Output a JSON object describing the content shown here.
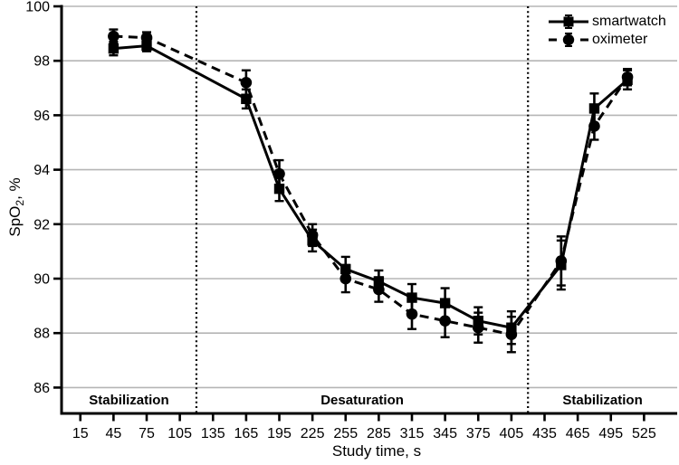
{
  "figure": {
    "background": "#ffffff",
    "series_color": "#000000",
    "gridline_color": "#b5b5b5"
  },
  "chart_data": {
    "type": "line",
    "title": "",
    "xlabel": "Study time, s",
    "ylabel_prefix": "SpO",
    "ylabel_sub": "2",
    "ylabel_suffix": ", %",
    "grid": "horizontal",
    "legend_position": "top-right",
    "xlim": [
      -2,
      555
    ],
    "ylim": [
      85.05,
      100
    ],
    "x_ticks": [
      15,
      45,
      75,
      105,
      135,
      165,
      195,
      225,
      255,
      285,
      315,
      345,
      375,
      405,
      435,
      465,
      495,
      525
    ],
    "y_ticks": [
      86,
      88,
      90,
      92,
      94,
      96,
      98,
      100
    ],
    "x": [
      45,
      75,
      165,
      195,
      225,
      255,
      285,
      315,
      345,
      375,
      405,
      450,
      480,
      510
    ],
    "series": [
      {
        "name": "smartwatch",
        "marker": "square",
        "line_style": "solid",
        "values": [
          98.45,
          98.55,
          96.6,
          93.3,
          91.4,
          90.35,
          89.9,
          89.3,
          89.1,
          88.45,
          88.2,
          90.5,
          96.25,
          97.3
        ],
        "errors": [
          0.25,
          0.2,
          0.35,
          0.45,
          0.4,
          0.45,
          0.4,
          0.5,
          0.55,
          0.5,
          0.6,
          0.9,
          0.55,
          0.35
        ]
      },
      {
        "name": "oximeter",
        "marker": "circle",
        "line_style": "dashed",
        "values": [
          98.9,
          98.85,
          97.2,
          93.85,
          91.6,
          90.0,
          89.6,
          88.7,
          88.45,
          88.2,
          87.95,
          90.65,
          95.6,
          97.4
        ],
        "errors": [
          0.25,
          0.2,
          0.45,
          0.5,
          0.4,
          0.5,
          0.45,
          0.55,
          0.6,
          0.55,
          0.65,
          0.9,
          0.5,
          0.3
        ]
      }
    ],
    "dividers_x": [
      120,
      420
    ],
    "regions": [
      {
        "label": "Stabilization",
        "from": -2,
        "to": 120
      },
      {
        "label": "Desaturation",
        "from": 120,
        "to": 420
      },
      {
        "label": "Stabilization",
        "from": 420,
        "to": 555
      }
    ]
  }
}
